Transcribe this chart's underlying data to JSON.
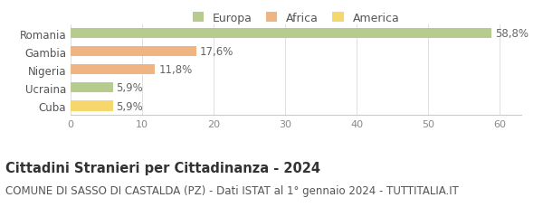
{
  "categories": [
    "Romania",
    "Gambia",
    "Nigeria",
    "Ucraina",
    "Cuba"
  ],
  "values": [
    58.8,
    17.6,
    11.8,
    5.9,
    5.9
  ],
  "labels": [
    "58,8%",
    "17,6%",
    "11,8%",
    "5,9%",
    "5,9%"
  ],
  "colors": [
    "#b5cc8e",
    "#f0b482",
    "#f0b482",
    "#b5cc8e",
    "#f5d76e"
  ],
  "legend_labels": [
    "Europa",
    "Africa",
    "America"
  ],
  "legend_colors": [
    "#b5cc8e",
    "#f0b482",
    "#f5d76e"
  ],
  "xlim": [
    0,
    63
  ],
  "xticks": [
    0,
    10,
    20,
    30,
    40,
    50,
    60
  ],
  "title": "Cittadini Stranieri per Cittadinanza - 2024",
  "subtitle": "COMUNE DI SASSO DI CASTALDA (PZ) - Dati ISTAT al 1° gennaio 2024 - TUTTITALIA.IT",
  "background_color": "#ffffff",
  "title_fontsize": 10.5,
  "subtitle_fontsize": 8.5
}
